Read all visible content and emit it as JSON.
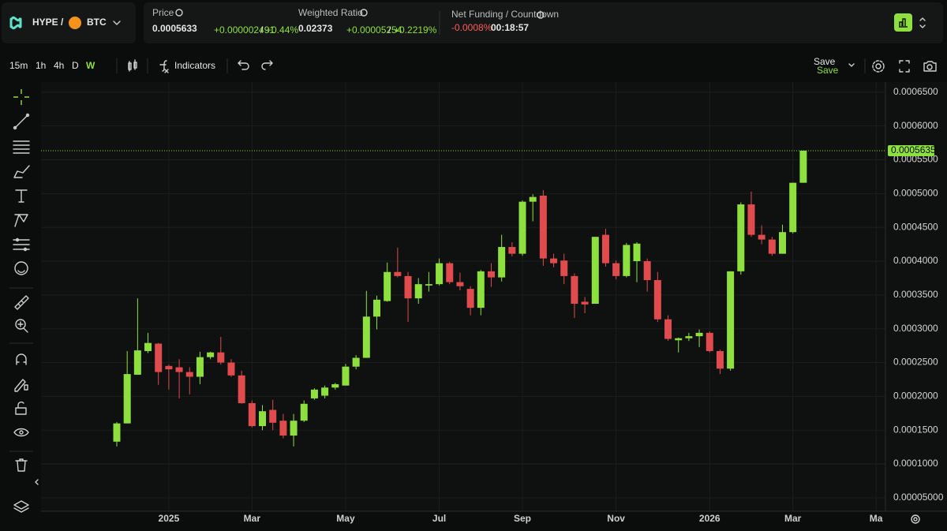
{
  "header": {
    "pair_base": "HYPE /",
    "pair_quote": "BTC",
    "price": {
      "label": "Price",
      "value": "0.0005633",
      "change": "+0.000002491",
      "separator": "/",
      "change_percent": "+0.44%"
    },
    "weighted_ratio": {
      "label": "Weighted Ratio",
      "value": "0.02373",
      "change": "+0.00005254",
      "separator": "/",
      "change_percent": "+0.2219%"
    },
    "net_funding": {
      "label": "Net Funding / Countdown",
      "rate": "-0.0008%",
      "countdown": "00:18:57"
    }
  },
  "toolbar": {
    "intervals": [
      "15m",
      "1h",
      "4h",
      "D",
      "W"
    ],
    "active_interval": "W",
    "indicators": "Indicators",
    "save": "Save",
    "save_status": "Save"
  },
  "chart_data": {
    "type": "candlestick",
    "categories": [
      null,
      null,
      null,
      null,
      null,
      "2025",
      null,
      null,
      null,
      null,
      null,
      null,
      null,
      "Mar",
      null,
      null,
      null,
      null,
      null,
      null,
      null,
      null,
      "May",
      null,
      null,
      null,
      null,
      null,
      null,
      null,
      null,
      "Jul",
      null,
      null,
      null,
      null,
      null,
      null,
      null,
      "Sep",
      null,
      null,
      null,
      null,
      null,
      null,
      null,
      null,
      "Nov",
      null,
      null,
      null,
      null,
      null,
      null,
      null,
      null,
      "2026",
      null,
      null,
      null,
      null,
      null,
      null,
      null,
      "Mar",
      null,
      null,
      null,
      null,
      null,
      null,
      null,
      "Ma"
    ],
    "open": [
      0.000133,
      0.00016,
      0.000232,
      0.000267,
      0.000278,
      0.000245,
      0.000243,
      0.000236,
      0.000229,
      0.000258,
      0.000265,
      0.00025,
      0.000231,
      0.00019,
      0.000156,
      0.00018,
      0.000164,
      0.000142,
      0.000164,
      0.000197,
      0.000201,
      0.000213,
      0.000216,
      0.000244,
      0.000257,
      0.000318,
      0.000341,
      0.000384,
      0.000378,
      0.000345,
      0.000364,
      0.000366,
      0.000397,
      0.000369,
      0.000359,
      0.000331,
      0.000385,
      0.000376,
      0.000421,
      0.000411,
      0.000488,
      0.000497,
      0.000404,
      0.000401,
      0.000378,
      0.00034,
      0.000337,
      0.000439,
      0.000397,
      0.000378,
      0.0004,
      0.0004,
      0.000372,
      0.000314,
      0.000283,
      0.000286,
      0.000289,
      0.000294,
      0.000267,
      0.000241,
      0.000385,
      0.000484,
      0.000439,
      0.000432,
      0.000411,
      0.000443,
      0.000516,
      null,
      null,
      null,
      null,
      null,
      null,
      null
    ],
    "high": [
      0.000162,
      0.000267,
      0.000345,
      0.000294,
      0.000279,
      0.000247,
      0.000255,
      0.000243,
      0.000266,
      0.000266,
      0.000288,
      0.000255,
      0.000238,
      0.000194,
      0.000187,
      0.000195,
      0.000174,
      0.000174,
      0.000194,
      0.000212,
      0.000216,
      0.00022,
      0.000248,
      0.000261,
      0.000356,
      0.000349,
      0.000398,
      0.00042,
      0.000384,
      0.000375,
      0.000384,
      0.000404,
      0.000399,
      0.000383,
      0.000363,
      0.000387,
      0.000397,
      0.000439,
      0.000428,
      0.00049,
      0.000499,
      0.000505,
      0.000411,
      0.000411,
      0.000382,
      0.000347,
      0.000436,
      0.000448,
      0.000401,
      0.000427,
      0.000428,
      0.000404,
      0.000384,
      0.00032,
      0.000287,
      0.000294,
      0.000299,
      0.000296,
      0.000269,
      0.000385,
      0.000487,
      0.000503,
      0.000453,
      0.000436,
      0.000454,
      0.000516,
      0.0005635,
      null,
      null,
      null,
      null,
      null,
      null,
      null
    ],
    "low": [
      0.000126,
      0.00016,
      0.000232,
      0.000264,
      0.000217,
      0.00021,
      0.000197,
      0.000203,
      0.000218,
      0.000255,
      0.000247,
      0.000229,
      0.000189,
      0.000154,
      0.00015,
      0.00015,
      0.000138,
      0.000126,
      0.000162,
      0.000195,
      0.000197,
      0.00021,
      0.000216,
      0.00024,
      0.000257,
      0.000299,
      0.00034,
      0.000376,
      0.00031,
      0.000337,
      0.000355,
      0.000364,
      0.000366,
      0.000357,
      0.00032,
      0.00032,
      0.000362,
      0.00037,
      0.000407,
      0.000408,
      0.000459,
      0.000393,
      0.000391,
      0.000366,
      0.000316,
      0.000323,
      0.000337,
      0.000392,
      0.000373,
      0.000376,
      0.000369,
      0.000355,
      0.00031,
      0.000282,
      0.000265,
      0.000282,
      0.000273,
      0.000265,
      0.000233,
      0.000238,
      0.00038,
      0.000436,
      0.000425,
      0.000408,
      0.000411,
      0.000441,
      0.000516,
      null,
      null,
      null,
      null,
      null,
      null,
      null
    ],
    "close": [
      0.00016,
      0.000233,
      0.000268,
      0.000279,
      0.000236,
      0.00024,
      0.000236,
      0.000229,
      0.000258,
      0.000265,
      0.00025,
      0.000231,
      0.00019,
      0.000156,
      0.000178,
      0.000161,
      0.000142,
      0.000164,
      0.000189,
      0.00021,
      0.000213,
      0.000218,
      0.000244,
      0.000257,
      0.000318,
      0.000343,
      0.000384,
      0.000378,
      0.000345,
      0.000366,
      0.000366,
      0.000397,
      0.000369,
      0.000363,
      0.000331,
      0.000385,
      0.000376,
      0.000421,
      0.000411,
      0.000488,
      0.000495,
      0.000404,
      0.000397,
      0.000378,
      0.000337,
      0.000336,
      0.000436,
      0.000397,
      0.000378,
      0.000424,
      0.000426,
      0.000372,
      0.000314,
      0.000285,
      0.000286,
      0.000289,
      0.000294,
      0.000267,
      0.000241,
      0.000385,
      0.000484,
      0.000439,
      0.000432,
      0.000411,
      0.000443,
      0.000516,
      0.0005635,
      null,
      null,
      null,
      null,
      null,
      null,
      null
    ],
    "up_color": "#8ee03f",
    "down_color": "#e04b4e",
    "ylim": [
      3e-05,
      0.000665
    ],
    "yticks": [
      {
        "value": 0.00065,
        "label": "0.0006500"
      },
      {
        "value": 0.0006,
        "label": "0.0006000"
      },
      {
        "value": 0.00055,
        "label": "0.0005500"
      },
      {
        "value": 0.0005,
        "label": "0.0005000"
      },
      {
        "value": 0.00045,
        "label": "0.0004500"
      },
      {
        "value": 0.0004,
        "label": "0.0004000"
      },
      {
        "value": 0.00035,
        "label": "0.0003500"
      },
      {
        "value": 0.0003,
        "label": "0.0003000"
      },
      {
        "value": 0.00025,
        "label": "0.0002500"
      },
      {
        "value": 0.0002,
        "label": "0.0002000"
      },
      {
        "value": 0.00015,
        "label": "0.0001500"
      },
      {
        "value": 0.0001,
        "label": "0.0001000"
      },
      {
        "value": 5e-05,
        "label": "0.00005000"
      }
    ],
    "grid": true
  }
}
